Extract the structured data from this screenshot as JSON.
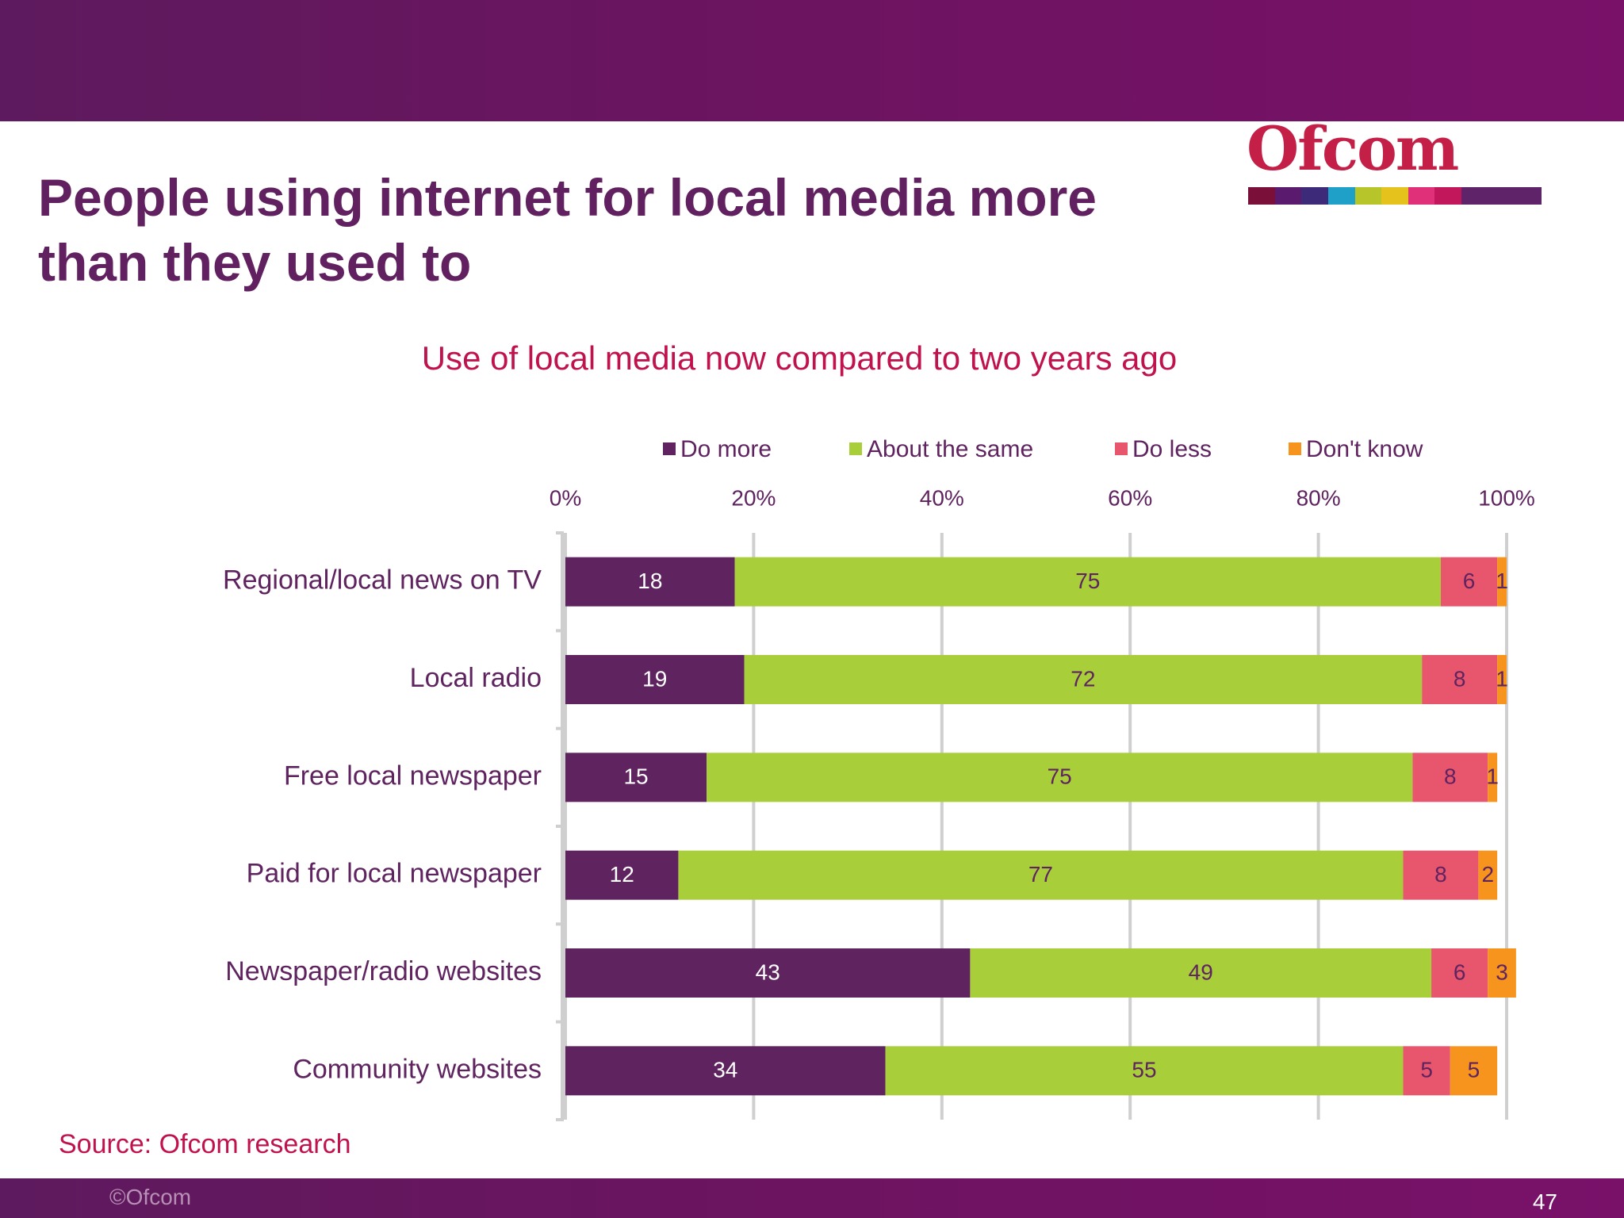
{
  "header": {
    "title": "People using internet for local media more than they used to",
    "logo_text": "Ofcom",
    "logo_stripe_colors": [
      "#7a0f3a",
      "#5a1a6e",
      "#3d2a78",
      "#1fa0c8",
      "#b7c42a",
      "#e6c31c",
      "#e0307a",
      "#c2185b",
      "#5e2368",
      "#5e2368",
      "#5e2368"
    ]
  },
  "chart_data": {
    "type": "bar",
    "orientation": "horizontal",
    "stacked": true,
    "title": "Use of local media now compared to two years ago",
    "categories": [
      "Regional/local news on TV",
      "Local radio",
      "Free local newspaper",
      "Paid for local newspaper",
      "Newspaper/radio websites",
      "Community websites"
    ],
    "series": [
      {
        "name": "Do more",
        "color": "#5f2360",
        "label_color": "#ffffff",
        "values": [
          18,
          19,
          15,
          12,
          43,
          34
        ]
      },
      {
        "name": "About the same",
        "color": "#a8cf3a",
        "label_color": "#5f2360",
        "values": [
          75,
          72,
          75,
          77,
          49,
          55
        ]
      },
      {
        "name": "Do less",
        "color": "#e8566d",
        "label_color": "#5f2360",
        "values": [
          6,
          8,
          8,
          8,
          6,
          5
        ]
      },
      {
        "name": "Don't know",
        "color": "#f7941d",
        "label_color": "#5f2360",
        "values": [
          1,
          1,
          1,
          2,
          3,
          5
        ]
      }
    ],
    "x_ticks": [
      "0%",
      "20%",
      "40%",
      "60%",
      "80%",
      "100%"
    ],
    "xlim": [
      0,
      100
    ],
    "legend_position": "top",
    "grid": true
  },
  "footer": {
    "source": "Source: Ofcom research",
    "copyright": "©Ofcom",
    "page_number": "47"
  }
}
